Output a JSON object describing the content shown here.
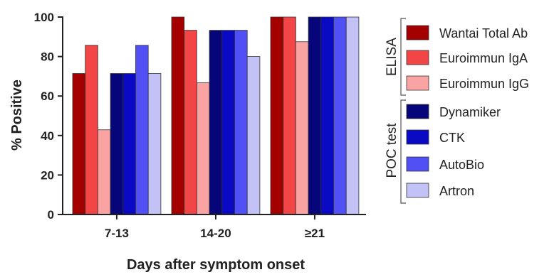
{
  "chart_data": {
    "type": "bar",
    "xlabel": "Days after symptom onset",
    "ylabel": "% Positive",
    "ylim": [
      0,
      100
    ],
    "yticks": [
      "0",
      "20",
      "40",
      "60",
      "80",
      "100"
    ],
    "categories": [
      "7-13",
      "14-20",
      "≥21"
    ],
    "series": [
      {
        "name": "Wantai Total Ab",
        "color": "#a50000",
        "values": [
          71.4,
          100,
          100
        ]
      },
      {
        "name": "Euroimmun IgA",
        "color": "#f24545",
        "values": [
          85.7,
          93.3,
          100
        ]
      },
      {
        "name": "Euroimmun IgG",
        "color": "#f9a3a3",
        "values": [
          42.9,
          66.7,
          87.5
        ]
      },
      {
        "name": "Dynamiker",
        "color": "#06067a",
        "values": [
          71.4,
          93.3,
          100
        ]
      },
      {
        "name": "CTK",
        "color": "#0a0ac4",
        "values": [
          71.4,
          93.3,
          100
        ]
      },
      {
        "name": "AutoBio",
        "color": "#5050f5",
        "values": [
          85.7,
          93.3,
          100
        ]
      },
      {
        "name": "Artron",
        "color": "#c2c2f6",
        "values": [
          71.4,
          80,
          100
        ]
      }
    ],
    "legend_groups": [
      {
        "label": "ELISA",
        "series": [
          0,
          1,
          2
        ]
      },
      {
        "label": "POC test",
        "series": [
          3,
          4,
          5,
          6
        ]
      }
    ],
    "legend_position": "right",
    "grid": false
  }
}
